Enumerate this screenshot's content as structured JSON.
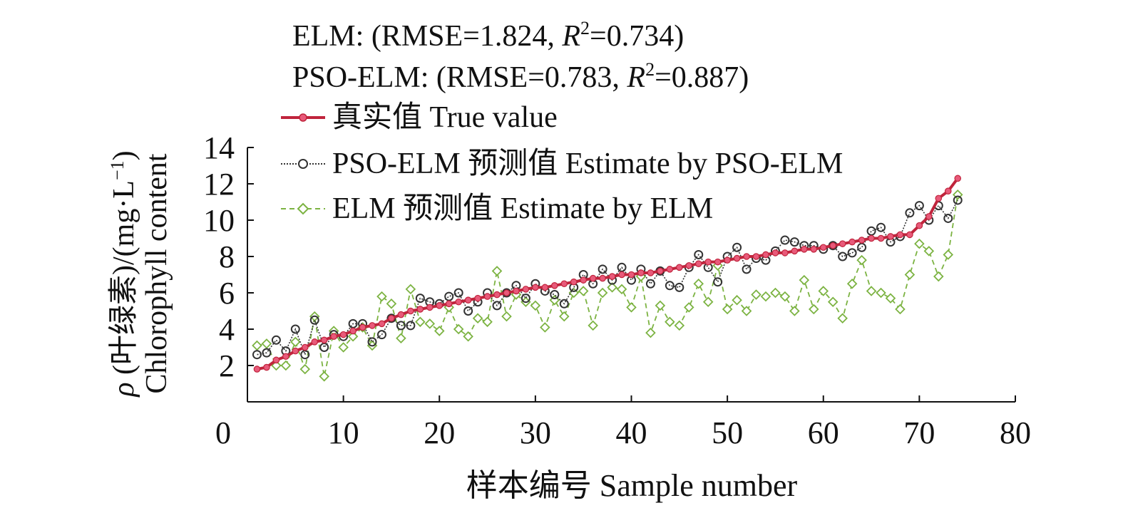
{
  "chart_data": {
    "type": "line",
    "stats": [
      {
        "label": "ELM: (RMSE=1.824, ",
        "r": "R",
        "sup": "2",
        "val": "=0.734)"
      },
      {
        "label": "PSO-ELM: (RMSE=0.783, ",
        "r": "R",
        "sup": "2",
        "val": "=0.887)"
      }
    ],
    "xlabel": "样本编号 Sample number",
    "ylabel": {
      "rho": "ρ",
      "line1_text": " (叶绿素)/(mg·L",
      "line1_sup": "−1",
      "line1_end": ")",
      "line2": "Chlorophyll content"
    },
    "xlim": [
      0,
      80
    ],
    "ylim": [
      0,
      14
    ],
    "x_ticks": [
      "0",
      "10",
      "20",
      "30",
      "40",
      "50",
      "60",
      "70",
      "80"
    ],
    "y_ticks": [
      "2",
      "4",
      "6",
      "8",
      "10",
      "12",
      "14"
    ],
    "x": [
      1,
      2,
      3,
      4,
      5,
      6,
      7,
      8,
      9,
      10,
      11,
      12,
      13,
      14,
      15,
      16,
      17,
      18,
      19,
      20,
      21,
      22,
      23,
      24,
      25,
      26,
      27,
      28,
      29,
      30,
      31,
      32,
      33,
      34,
      35,
      36,
      37,
      38,
      39,
      40,
      41,
      42,
      43,
      44,
      45,
      46,
      47,
      48,
      49,
      50,
      51,
      52,
      53,
      54,
      55,
      56,
      57,
      58,
      59,
      60,
      61,
      62,
      63,
      64,
      65,
      66,
      67,
      68,
      69,
      70,
      71,
      72,
      73,
      74
    ],
    "series": [
      {
        "name": "真实值 True value",
        "color": "#c0243c",
        "marker": "star",
        "values": [
          1.8,
          1.9,
          2.3,
          2.5,
          2.8,
          3.0,
          3.3,
          3.4,
          3.6,
          3.7,
          3.9,
          4.1,
          4.2,
          4.3,
          4.6,
          4.8,
          5.0,
          5.1,
          5.2,
          5.3,
          5.4,
          5.5,
          5.6,
          5.7,
          5.8,
          5.9,
          6.0,
          6.1,
          6.2,
          6.3,
          6.3,
          6.4,
          6.5,
          6.6,
          6.7,
          6.8,
          6.8,
          6.9,
          7.0,
          7.0,
          7.1,
          7.1,
          7.2,
          7.3,
          7.4,
          7.5,
          7.6,
          7.7,
          7.7,
          7.8,
          7.9,
          8.0,
          8.0,
          8.1,
          8.2,
          8.2,
          8.3,
          8.4,
          8.4,
          8.5,
          8.6,
          8.7,
          8.8,
          8.9,
          9.0,
          9.0,
          9.1,
          9.2,
          9.2,
          9.7,
          10.2,
          11.2,
          11.6,
          12.3
        ]
      },
      {
        "name": "PSO-ELM 预测值 Estimate by PSO-ELM",
        "color": "#333333",
        "marker": "circle",
        "values": [
          2.6,
          2.7,
          3.4,
          2.8,
          4.0,
          2.6,
          4.5,
          3.0,
          3.7,
          3.6,
          4.3,
          4.3,
          3.3,
          3.7,
          4.6,
          4.2,
          4.2,
          5.7,
          5.5,
          5.4,
          5.8,
          6.0,
          5.0,
          5.5,
          6.0,
          5.3,
          6.0,
          6.4,
          5.7,
          6.5,
          6.1,
          5.9,
          5.4,
          6.3,
          7.0,
          6.5,
          7.3,
          6.7,
          7.4,
          6.7,
          7.3,
          6.5,
          7.2,
          6.4,
          6.3,
          7.4,
          8.1,
          7.4,
          6.6,
          8.0,
          8.5,
          7.3,
          7.9,
          7.8,
          8.3,
          8.9,
          8.8,
          8.6,
          8.6,
          8.4,
          8.6,
          8.0,
          8.2,
          8.5,
          9.4,
          9.6,
          8.8,
          9.1,
          10.4,
          10.8,
          10.0,
          10.8,
          10.1,
          11.1
        ]
      },
      {
        "name": "ELM 预测值 Estimate by ELM",
        "color": "#7cb342",
        "marker": "diamond",
        "values": [
          3.1,
          3.2,
          2.0,
          2.0,
          3.3,
          1.8,
          4.7,
          1.4,
          3.9,
          3.0,
          3.6,
          4.1,
          3.1,
          5.8,
          5.4,
          3.5,
          6.2,
          4.4,
          4.3,
          3.9,
          5.2,
          4.0,
          3.6,
          4.6,
          4.4,
          7.2,
          4.7,
          5.9,
          5.5,
          5.3,
          4.1,
          5.6,
          4.7,
          6.0,
          6.1,
          4.2,
          6.0,
          6.3,
          6.2,
          5.2,
          6.9,
          3.8,
          5.3,
          4.4,
          4.2,
          5.2,
          6.5,
          5.5,
          7.5,
          5.1,
          5.6,
          5.0,
          5.9,
          5.8,
          6.0,
          5.8,
          5.0,
          6.7,
          5.1,
          6.1,
          5.5,
          4.6,
          6.5,
          7.8,
          6.1,
          6.0,
          5.7,
          5.1,
          7.0,
          8.7,
          8.3,
          6.9,
          8.1,
          11.4
        ]
      }
    ]
  }
}
